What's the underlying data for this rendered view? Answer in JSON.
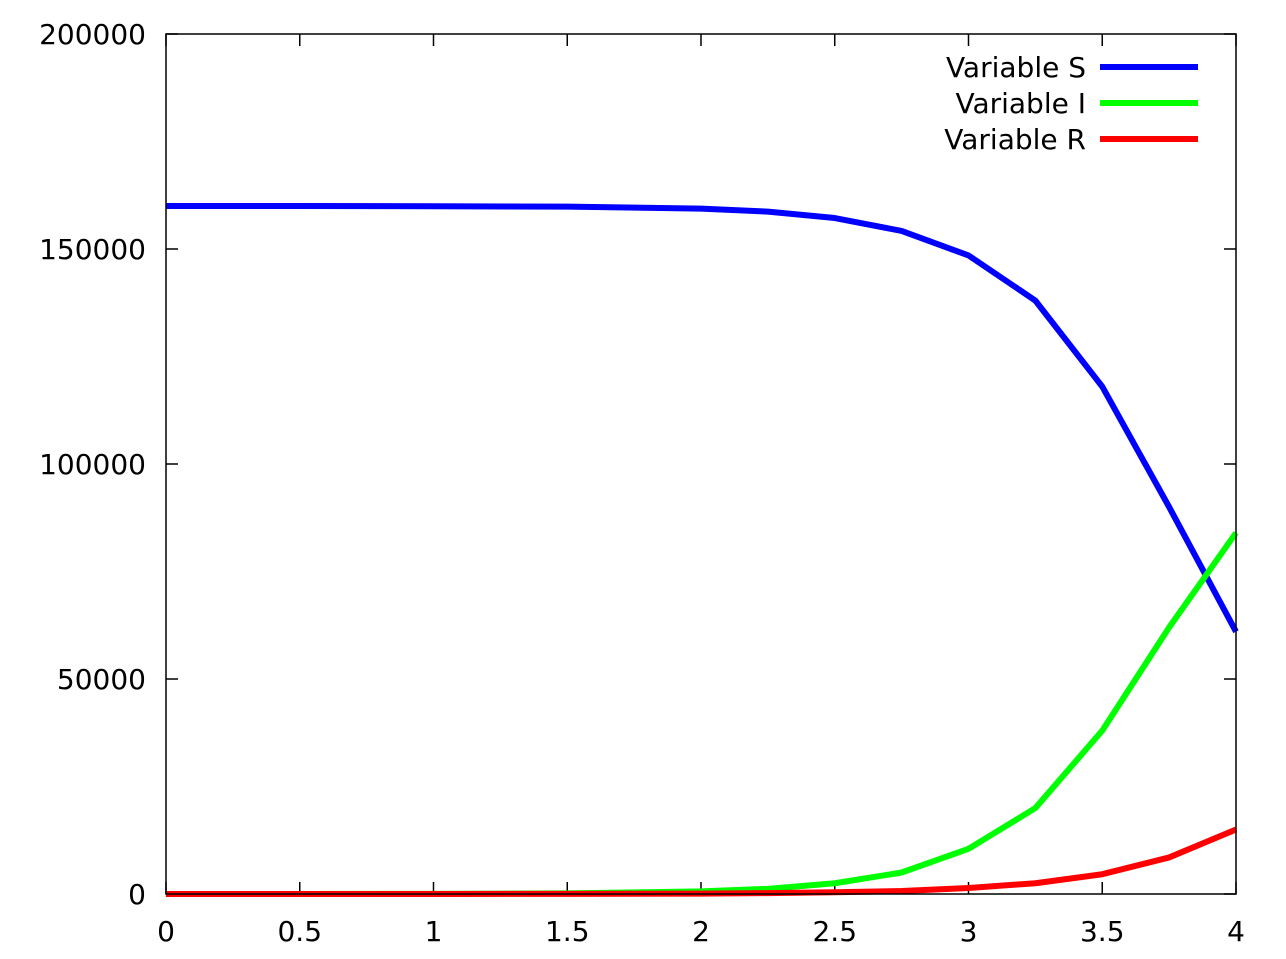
{
  "chart_data": {
    "type": "line",
    "title": "",
    "xlabel": "",
    "ylabel": "",
    "xlim": [
      0,
      4
    ],
    "ylim": [
      0,
      200000
    ],
    "x_ticks": [
      "0",
      "0.5",
      "1",
      "1.5",
      "2",
      "2.5",
      "3",
      "3.5",
      "4"
    ],
    "y_ticks": [
      "0",
      "50000",
      "100000",
      "150000",
      "200000"
    ],
    "grid": false,
    "legend_position": "top-right",
    "x": [
      0,
      0.5,
      1,
      1.5,
      2,
      2.25,
      2.5,
      2.75,
      3,
      3.25,
      3.5,
      3.75,
      4
    ],
    "series": [
      {
        "name": "Variable S",
        "color": "#0000ff",
        "values": [
          160000,
          159990,
          159950,
          159850,
          159400,
          158700,
          157200,
          154200,
          148500,
          138000,
          118000,
          90000,
          61000
        ]
      },
      {
        "name": "Variable I",
        "color": "#00ff00",
        "values": [
          0,
          5,
          30,
          150,
          600,
          1200,
          2500,
          5000,
          10500,
          20000,
          38000,
          62000,
          84000
        ]
      },
      {
        "name": "Variable R",
        "color": "#ff0000",
        "values": [
          0,
          0,
          5,
          30,
          100,
          200,
          400,
          700,
          1400,
          2500,
          4600,
          8500,
          15000
        ]
      }
    ]
  }
}
